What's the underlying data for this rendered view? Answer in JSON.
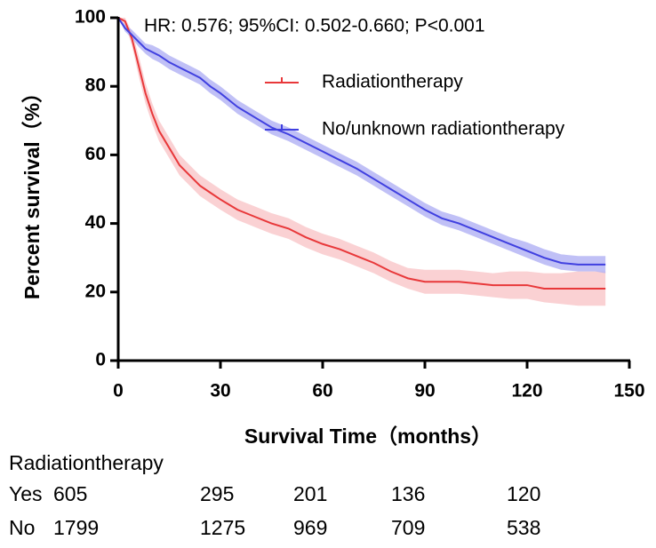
{
  "chart_data": {
    "type": "survival",
    "annotation": "HR: 0.576; 95%CI: 0.502-0.660; P<0.001",
    "x_label": "Survival Time（months）",
    "y_label": "Percent survival（%）",
    "xlim": [
      0,
      150
    ],
    "xticks": [
      0,
      30,
      60,
      90,
      120,
      150
    ],
    "ylim": [
      0,
      100
    ],
    "yticks": [
      0,
      20,
      40,
      60,
      80,
      100
    ],
    "x": [
      0,
      2,
      4,
      6,
      8,
      10,
      12,
      15,
      18,
      21,
      24,
      27,
      30,
      35,
      40,
      45,
      50,
      55,
      60,
      65,
      70,
      75,
      80,
      85,
      90,
      95,
      100,
      105,
      110,
      115,
      120,
      125,
      130,
      135,
      140,
      143
    ],
    "series": [
      {
        "name": "Radiationtherapy",
        "color": "#e8383a",
        "ci_color": "#f9c6c8",
        "values": [
          100,
          99,
          94,
          86,
          78,
          72,
          67,
          62,
          57,
          54,
          51,
          49,
          47,
          44,
          42,
          40,
          38.5,
          36,
          34,
          32.5,
          30.5,
          28.5,
          26,
          24,
          23,
          23,
          23,
          22.5,
          22,
          22,
          22,
          21,
          21,
          21,
          21,
          21
        ],
        "lower": [
          100,
          98,
          92,
          83,
          75,
          69,
          64,
          59,
          54,
          51,
          48,
          46,
          44,
          41,
          39,
          37,
          35.5,
          33,
          31,
          29.5,
          27.5,
          25.5,
          23,
          21,
          19.5,
          19.5,
          19.5,
          19,
          18.5,
          18,
          18,
          17,
          16.5,
          16,
          16,
          16
        ],
        "upper": [
          100,
          100,
          96,
          89,
          81,
          75,
          70,
          65,
          60,
          57,
          54,
          52,
          50,
          47,
          45,
          43,
          41.5,
          39,
          37,
          35.5,
          33.5,
          31.5,
          29,
          27,
          26.5,
          26.5,
          26.5,
          26,
          25.5,
          26,
          26,
          25.5,
          25.5,
          26,
          26,
          26
        ]
      },
      {
        "name": "No/unknown radiationtherapy",
        "color": "#4040e0",
        "ci_color": "#b0b0f4",
        "values": [
          100,
          97,
          95,
          93,
          91,
          90,
          89,
          87,
          85.5,
          84,
          82.5,
          80,
          78,
          74,
          71,
          68,
          66,
          63.5,
          61,
          58.5,
          56,
          53,
          50,
          47,
          44,
          41.5,
          40,
          38,
          36,
          34,
          32,
          30,
          28.5,
          28,
          28,
          28
        ],
        "lower": [
          100,
          96,
          94,
          91.5,
          89.5,
          88,
          87,
          85,
          83.5,
          82,
          80.5,
          78,
          76,
          72,
          69,
          66,
          64,
          61.5,
          59,
          56.5,
          54,
          51,
          48,
          45,
          42,
          39.5,
          38,
          36,
          34,
          32,
          30,
          28,
          26.5,
          26,
          26,
          25.5
        ],
        "upper": [
          100,
          98,
          96.5,
          94.5,
          92.5,
          92,
          91,
          89,
          87.5,
          86,
          84.5,
          82,
          80,
          76,
          73,
          70,
          68,
          65.5,
          63,
          60.5,
          58,
          55,
          52,
          49,
          46,
          43.5,
          42,
          40,
          38,
          36,
          34.5,
          32.5,
          31,
          30.5,
          30.5,
          30.5
        ]
      }
    ]
  },
  "risk_table": {
    "title": "Radiationtherapy",
    "rows": [
      {
        "label": "Yes",
        "values": [
          605,
          295,
          201,
          136,
          120
        ]
      },
      {
        "label": "No",
        "values": [
          1799,
          1275,
          969,
          709,
          538
        ]
      }
    ]
  }
}
